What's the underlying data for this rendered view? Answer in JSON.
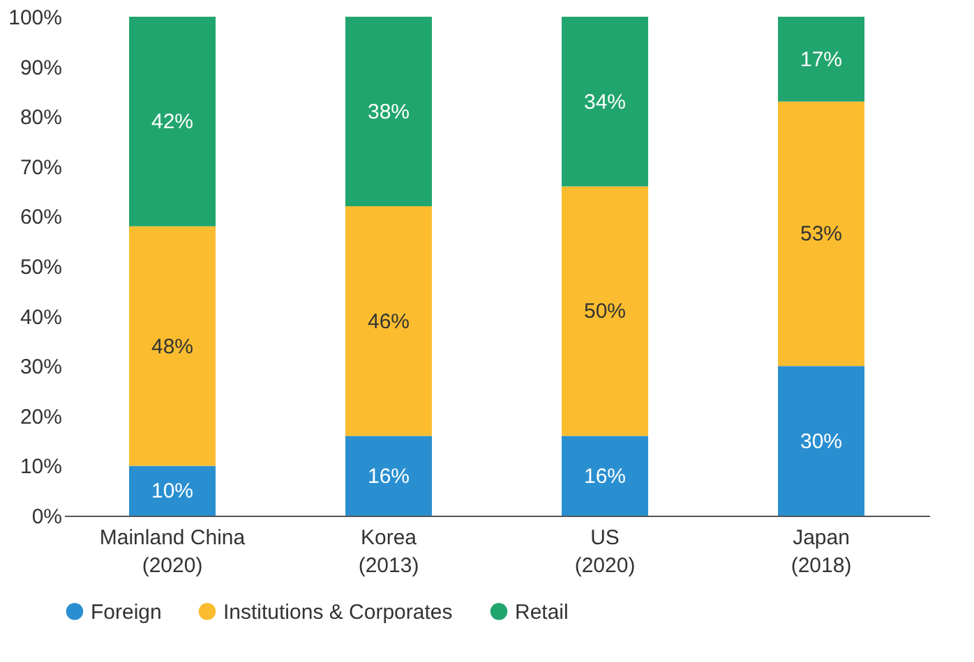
{
  "chart_data": {
    "type": "bar",
    "stacked": true,
    "categories": [
      "Mainland China\n(2020)",
      "Korea\n(2013)",
      "US\n(2020)",
      "Japan\n(2018)"
    ],
    "series": [
      {
        "name": "Foreign",
        "color": "#2a8fd0",
        "values": [
          10,
          16,
          16,
          30
        ],
        "value_labels": [
          "10%",
          "16%",
          "16%",
          "30%"
        ]
      },
      {
        "name": "Institutions & Corporates",
        "color": "#fbbd2f",
        "values": [
          48,
          46,
          50,
          53
        ],
        "value_labels": [
          "48%",
          "46%",
          "50%",
          "53%"
        ]
      },
      {
        "name": "Retail",
        "color": "#21a56e",
        "values": [
          42,
          38,
          34,
          17
        ],
        "value_labels": [
          "42%",
          "38%",
          "34%",
          "17%"
        ]
      }
    ],
    "ylim": [
      0,
      100
    ],
    "yticks": [
      {
        "value": 0,
        "label": "0%"
      },
      {
        "value": 10,
        "label": "10%"
      },
      {
        "value": 20,
        "label": "20%"
      },
      {
        "value": 30,
        "label": "30%"
      },
      {
        "value": 40,
        "label": "40%"
      },
      {
        "value": 50,
        "label": "50%"
      },
      {
        "value": 60,
        "label": "60%"
      },
      {
        "value": 70,
        "label": "70%"
      },
      {
        "value": 80,
        "label": "80%"
      },
      {
        "value": 90,
        "label": "90%"
      },
      {
        "value": 100,
        "label": "100%"
      }
    ],
    "grid": false,
    "legend": "bottom"
  }
}
